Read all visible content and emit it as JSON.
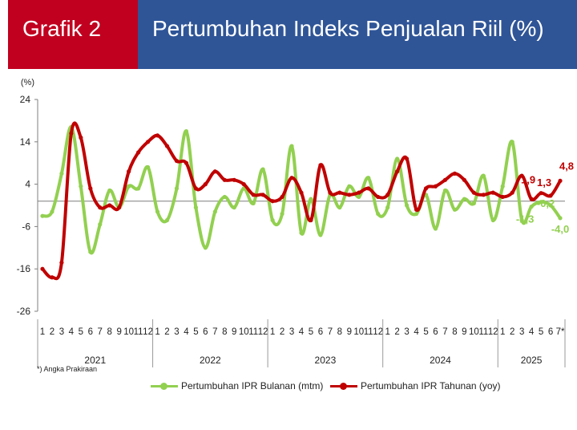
{
  "header": {
    "label": "Grafik 2",
    "title": "Pertumbuhan Indeks Penjualan Riil (%)"
  },
  "note": "*) Angka  Prakiraan",
  "colors": {
    "mtm": "#92d050",
    "yoy": "#c00000",
    "header_left": "#c1001f",
    "header_right": "#2f5597"
  },
  "chart_data": {
    "type": "line",
    "ylabel": "(%)",
    "ylim": [
      -26,
      24
    ],
    "yticks": [
      24,
      14,
      4,
      -6,
      -16,
      -26
    ],
    "x_labels": [
      "1",
      "2",
      "3",
      "4",
      "5",
      "6",
      "7",
      "8",
      "9",
      "10",
      "11",
      "12",
      "1",
      "2",
      "3",
      "4",
      "5",
      "6",
      "7",
      "8",
      "9",
      "10",
      "11",
      "12",
      "1",
      "2",
      "3",
      "4",
      "5",
      "6",
      "7",
      "8",
      "9",
      "10",
      "11",
      "12",
      "1",
      "2",
      "3",
      "4",
      "5",
      "6",
      "7",
      "8",
      "9",
      "10",
      "11",
      "12",
      "1",
      "2",
      "3",
      "4",
      "5",
      "6",
      "7*"
    ],
    "years": [
      {
        "label": "2021",
        "start": 0,
        "count": 12
      },
      {
        "label": "2022",
        "start": 12,
        "count": 12
      },
      {
        "label": "2023",
        "start": 24,
        "count": 12
      },
      {
        "label": "2024",
        "start": 36,
        "count": 12
      },
      {
        "label": "2025",
        "start": 48,
        "count": 7
      }
    ],
    "series": [
      {
        "name": "Pertumbuhan IPR Bulanan (mtm)",
        "values": [
          -3.5,
          -2.5,
          6.5,
          17.5,
          3.5,
          -12,
          -5.5,
          2.5,
          -1.5,
          3.5,
          3,
          8,
          -2.5,
          -4.5,
          3,
          16.5,
          -1.5,
          -11,
          -2.5,
          1,
          -1.5,
          3,
          -0.5,
          7.5,
          -4.5,
          -3,
          13,
          -7.5,
          0.5,
          -8,
          1.5,
          -1.5,
          3.5,
          1,
          5.5,
          -3,
          -1.5,
          10,
          -1,
          -3,
          1.5,
          -6.5,
          2.5,
          -2,
          0.5,
          -0.5,
          6,
          -4.5,
          3.5,
          14,
          -4.5,
          -1.3,
          -0.2,
          -1,
          -4.0
        ],
        "labels": [
          {
            "index": 51,
            "text": "-1,3"
          },
          {
            "index": 52,
            "text": "-0,2"
          },
          {
            "index": 54,
            "text": "-4,0"
          }
        ]
      },
      {
        "name": "Pertumbuhan IPR Tahunan (yoy)",
        "values": [
          -16,
          -18,
          -14.5,
          16,
          15,
          3,
          -1.5,
          -1,
          -1.5,
          7,
          11.5,
          14,
          15.5,
          13,
          9.5,
          9,
          3,
          4,
          7,
          5,
          5,
          4,
          1.5,
          1.5,
          0,
          1,
          5.5,
          2,
          -4.5,
          8.5,
          2,
          2,
          1.5,
          2,
          3,
          1,
          1.5,
          7,
          10,
          -2,
          3,
          3.5,
          5,
          6.5,
          5,
          2,
          1.5,
          2,
          1,
          2,
          6,
          0.5,
          1.9,
          1.3,
          4.8
        ],
        "labels": [
          {
            "index": 52,
            "text": "1,9"
          },
          {
            "index": 53,
            "text": "1,3"
          },
          {
            "index": 54,
            "text": "4,8"
          }
        ]
      }
    ]
  }
}
